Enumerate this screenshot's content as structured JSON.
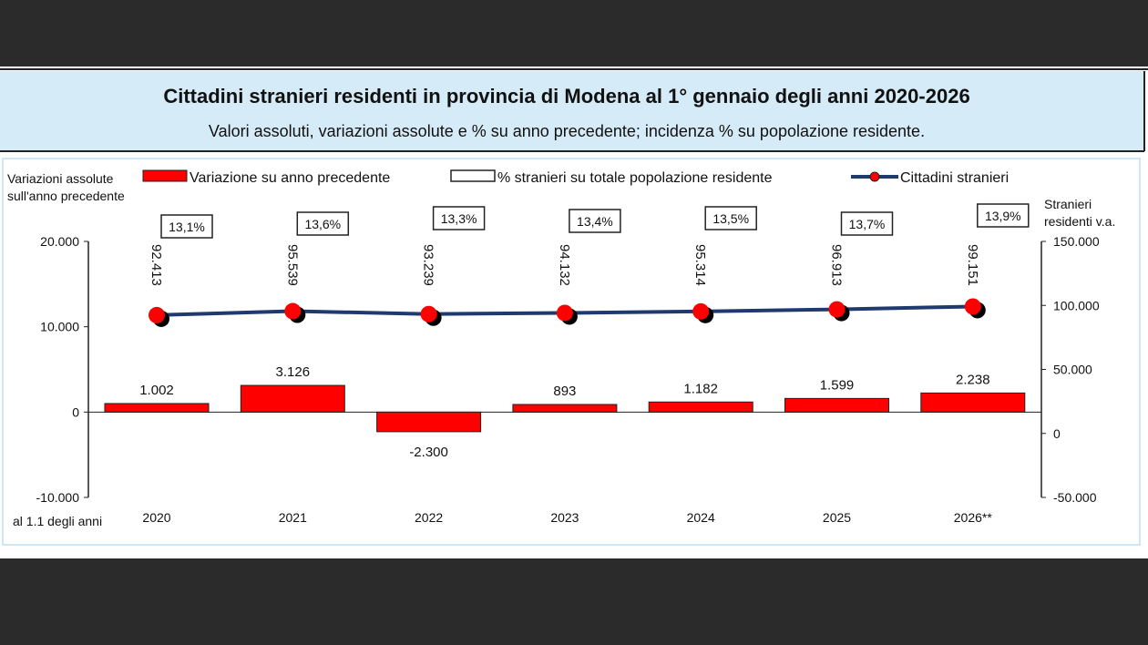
{
  "title": "Cittadini stranieri residenti in provincia di Modena al 1° gennaio degli anni 2020-2026",
  "subtitle": "Valori assoluti, variazioni assolute e % su anno precedente; incidenza % su popolazione residente.",
  "chart_data": {
    "type": "bar+line",
    "categories": [
      "2020",
      "2021",
      "2022",
      "2023",
      "2024",
      "2025",
      "2026**"
    ],
    "xlabel": "al 1.1 degli anni",
    "ylabel_left": "Variazioni assolute sull'anno precedente",
    "ylabel_right": "Stranieri residenti v.a.",
    "ylim_left": [
      -10000,
      20000
    ],
    "yticks_left": [
      "-10.000",
      "0",
      "10.000",
      "20.000"
    ],
    "ylim_right": [
      -50000,
      150000
    ],
    "yticks_right": [
      "-50.000",
      "0",
      "50.000",
      "100.000",
      "150.000"
    ],
    "legend_position": "top",
    "grid": false,
    "series": [
      {
        "name": "Variazione su anno precedente",
        "type": "bar",
        "axis": "left",
        "color": "#ff0000",
        "values": [
          1002,
          3126,
          -2300,
          893,
          1182,
          1599,
          2238
        ],
        "labels": [
          "1.002",
          "3.126",
          "-2.300",
          "893",
          "1.182",
          "1.599",
          "2.238"
        ]
      },
      {
        "name": "% stranieri su totale popolazione residente",
        "type": "label-box",
        "values": [
          13.1,
          13.6,
          13.3,
          13.4,
          13.5,
          13.7,
          13.9
        ],
        "labels": [
          "13,1%",
          "13,6%",
          "13,3%",
          "13,4%",
          "13,5%",
          "13,7%",
          "13,9%"
        ]
      },
      {
        "name": "Cittadini stranieri",
        "type": "line",
        "axis": "right",
        "color": "#1f3a6e",
        "marker_color": "#ff0000",
        "values": [
          92413,
          95539,
          93239,
          94132,
          95314,
          96913,
          99151
        ],
        "labels": [
          "92.413",
          "95.539",
          "93.239",
          "94.132",
          "95.314",
          "96.913",
          "99.151"
        ]
      }
    ]
  }
}
